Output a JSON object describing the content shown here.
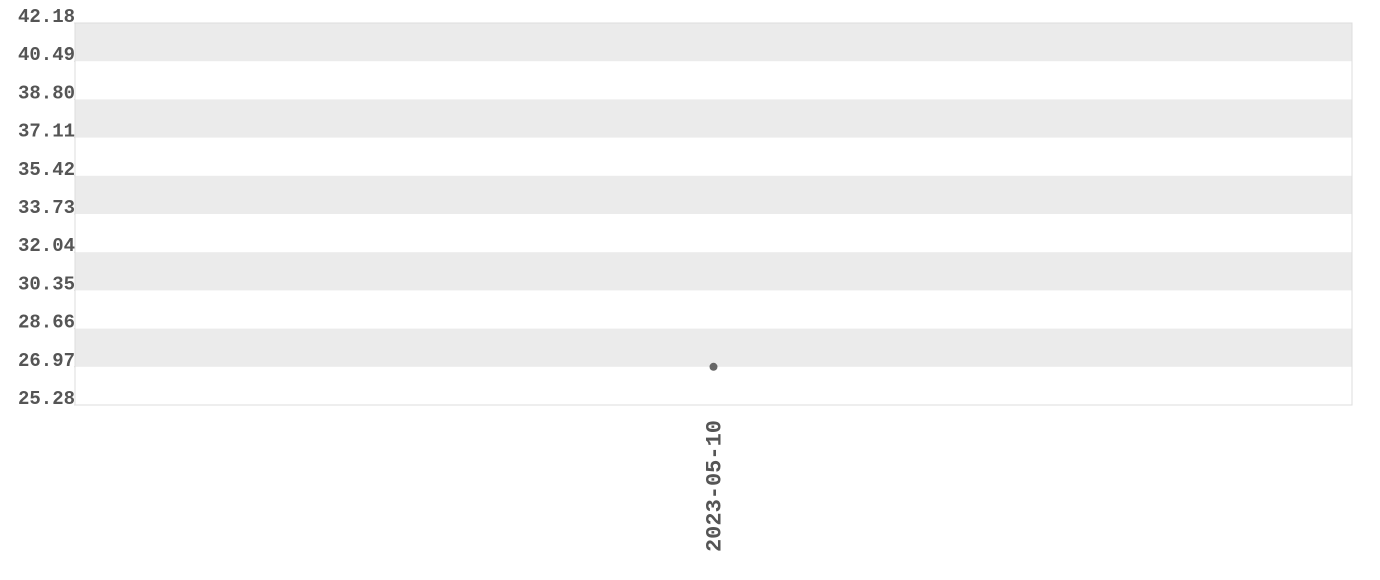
{
  "chart_data": {
    "type": "line",
    "x": [
      "2023-05-10"
    ],
    "series": [
      {
        "values": [
          26.97
        ],
        "color": "#666666"
      }
    ],
    "ylim": [
      25.28,
      42.18
    ],
    "yticks": [
      25.28,
      26.97,
      28.66,
      30.35,
      32.04,
      33.73,
      35.42,
      37.11,
      {
        "value": 38.8,
        "label": "38.80"
      },
      40.49,
      42.18
    ],
    "grid": true
  }
}
